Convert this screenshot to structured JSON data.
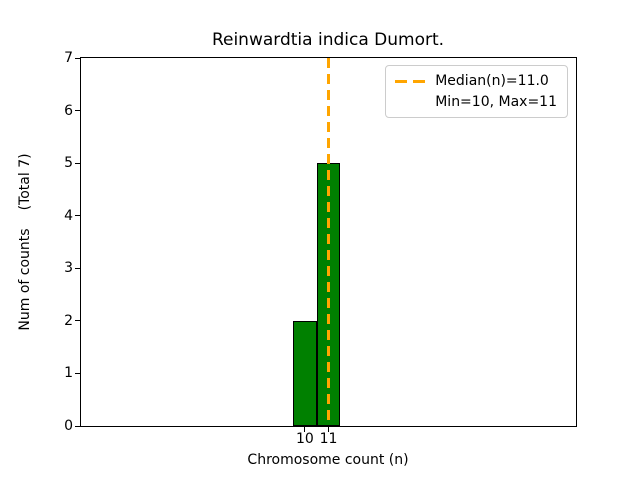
{
  "figure": {
    "title": "Reinwardtia indica Dumort.",
    "xlabel": "Chromosome count (n)",
    "ylabel_primary": "Num of counts",
    "ylabel_secondary": "(Total 7)",
    "legend": {
      "items": [
        {
          "label": "Median(n)=11.0",
          "handle": "orange-dashed-line"
        },
        {
          "label": "Min=10, Max=11",
          "handle": "none"
        }
      ]
    }
  },
  "chart_data": {
    "type": "bar",
    "title": "Reinwardtia indica Dumort.",
    "xlabel": "Chromosome count (n)",
    "ylabel": "Num of counts (Total 7)",
    "x": [
      10,
      11
    ],
    "values": [
      2,
      5
    ],
    "bar_width": 1.0,
    "bar_color": "#008000",
    "bar_edge_color": "#000000",
    "median_line": {
      "x": 11.0,
      "color": "#FFA500",
      "style": "dashed",
      "label": "Median(n)=11.0"
    },
    "stats": {
      "median": 11.0,
      "min": 10,
      "max": 11,
      "total_counts": 7
    },
    "xlim": [
      0.5,
      21.5
    ],
    "ylim": [
      0,
      7
    ],
    "xticks": [
      10,
      11
    ],
    "yticks": [
      0,
      1,
      2,
      3,
      4,
      5,
      6,
      7
    ],
    "legend_position": "upper right",
    "grid": false
  }
}
